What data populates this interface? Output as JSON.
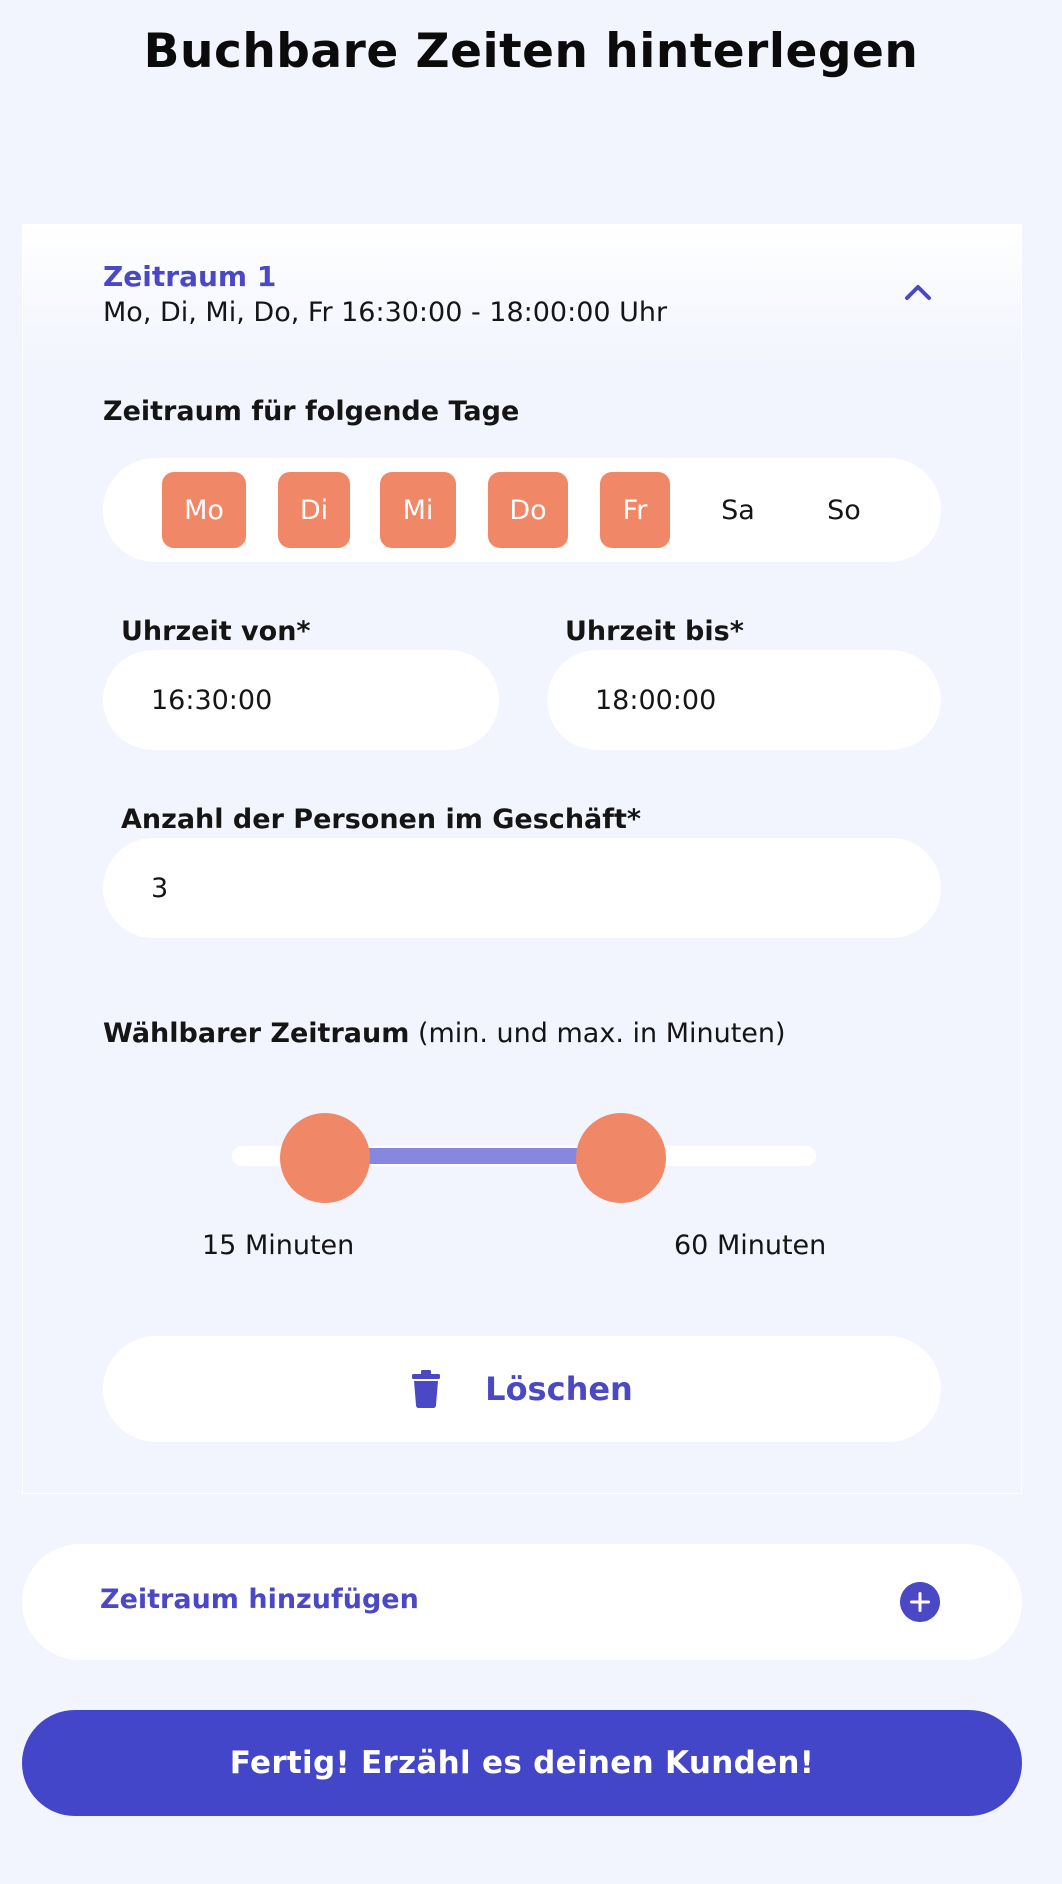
{
  "page": {
    "title": "Buchbare Zeiten hinterlegen"
  },
  "period": {
    "title": "Zeitraum 1",
    "summary": "Mo, Di, Mi, Do, Fr 16:30:00 - 18:00:00 Uhr",
    "days_label": "Zeitraum für folgende Tage",
    "days": [
      {
        "label": "Mo",
        "selected": true
      },
      {
        "label": "Di",
        "selected": true
      },
      {
        "label": "Mi",
        "selected": true
      },
      {
        "label": "Do",
        "selected": true
      },
      {
        "label": "Fr",
        "selected": true
      },
      {
        "label": "Sa",
        "selected": false
      },
      {
        "label": "So",
        "selected": false
      }
    ],
    "time_from_label": "Uhrzeit von*",
    "time_from_value": "16:30:00",
    "time_to_label": "Uhrzeit bis*",
    "time_to_value": "18:00:00",
    "persons_label": "Anzahl der Personen im Geschäft*",
    "persons_value": "3",
    "range_label_bold": "Wählbarer Zeitraum",
    "range_label_rest": " (min. und max. in Minuten)",
    "slider_min_text": "15 Minuten",
    "slider_max_text": "60 Minuten",
    "delete_label": "Löschen"
  },
  "add_period_label": "Zeitraum hinzufügen",
  "done_label": "Fertig! Erzähl es deinen Kunden!",
  "colors": {
    "accent": "#4a48c4",
    "selected_day": "#f08767",
    "slider_fill": "#8787e0",
    "background": "#f2f5fd"
  },
  "icons": {
    "collapse": "chevron-up-icon",
    "delete": "trash-icon",
    "add": "plus-circle-icon"
  }
}
